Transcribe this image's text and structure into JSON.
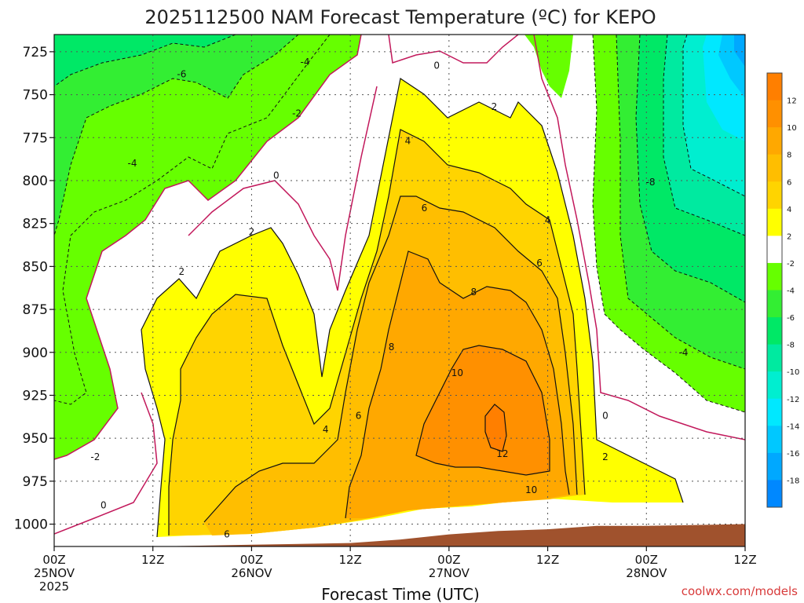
{
  "chart_data": {
    "type": "heatmap",
    "title": "2025112500 NAM Forecast Temperature (ºC) for KEPO",
    "xlabel": "Forecast Time (UTC)",
    "ylabel": "",
    "credit": "coolwx.com/models",
    "x_ticks": [
      {
        "hour": 0,
        "line1": "00Z",
        "line2": "25NOV",
        "line3": "2025"
      },
      {
        "hour": 12,
        "line1": "12Z",
        "line2": "",
        "line3": ""
      },
      {
        "hour": 24,
        "line1": "00Z",
        "line2": "26NOV",
        "line3": ""
      },
      {
        "hour": 36,
        "line1": "12Z",
        "line2": "",
        "line3": ""
      },
      {
        "hour": 48,
        "line1": "00Z",
        "line2": "27NOV",
        "line3": ""
      },
      {
        "hour": 60,
        "line1": "12Z",
        "line2": "",
        "line3": ""
      },
      {
        "hour": 72,
        "line1": "00Z",
        "line2": "28NOV",
        "line3": ""
      },
      {
        "hour": 84,
        "line1": "12Z",
        "line2": "",
        "line3": ""
      }
    ],
    "y_ticks": [
      725,
      750,
      775,
      800,
      825,
      850,
      875,
      900,
      925,
      950,
      975,
      1000
    ],
    "y_range": [
      1013,
      715
    ],
    "x_range": [
      0,
      84
    ],
    "colorbar": {
      "bins": [
        {
          "lo": 12,
          "hi": 14,
          "color": "#ff7f00"
        },
        {
          "lo": 10,
          "hi": 12,
          "color": "#ff9000"
        },
        {
          "lo": 8,
          "hi": 10,
          "color": "#ffa800"
        },
        {
          "lo": 6,
          "hi": 8,
          "color": "#ffbe00"
        },
        {
          "lo": 4,
          "hi": 6,
          "color": "#ffd400"
        },
        {
          "lo": 2,
          "hi": 4,
          "color": "#ffff00"
        },
        {
          "lo": -2,
          "hi": 2,
          "color": "#ffffff"
        },
        {
          "lo": -4,
          "hi": -2,
          "color": "#66ff00"
        },
        {
          "lo": -6,
          "hi": -4,
          "color": "#33ee33"
        },
        {
          "lo": -8,
          "hi": -6,
          "color": "#00e866"
        },
        {
          "lo": -10,
          "hi": -8,
          "color": "#00eaa0"
        },
        {
          "lo": -12,
          "hi": -10,
          "color": "#00eed0"
        },
        {
          "lo": -14,
          "hi": -12,
          "color": "#00e8ff"
        },
        {
          "lo": -16,
          "hi": -14,
          "color": "#00c8ff"
        },
        {
          "lo": -18,
          "hi": -16,
          "color": "#00a8ff"
        },
        {
          "lo": -20,
          "hi": -18,
          "color": "#0088ff"
        }
      ],
      "tick_labels": [
        "12",
        "10",
        "8",
        "6",
        "4",
        "2",
        "-2",
        "-4",
        "-6",
        "-8",
        "-10",
        "-12",
        "-14",
        "-16",
        "-18"
      ]
    },
    "terrain_color": "#a0522d",
    "surface_pressure": [
      {
        "hour": 0,
        "p": 1013
      },
      {
        "hour": 12,
        "p": 1013
      },
      {
        "hour": 24,
        "p": 1012
      },
      {
        "hour": 36,
        "p": 1011
      },
      {
        "hour": 42,
        "p": 1009
      },
      {
        "hour": 48,
        "p": 1006
      },
      {
        "hour": 54,
        "p": 1004
      },
      {
        "hour": 60,
        "p": 1003
      },
      {
        "hour": 66,
        "p": 1001
      },
      {
        "hour": 72,
        "p": 1001
      },
      {
        "hour": 84,
        "p": 1000
      }
    ],
    "contour_labels": [
      {
        "text": "-6",
        "hour": 15.5,
        "p": 738
      },
      {
        "text": "-4",
        "hour": 30.5,
        "p": 731
      },
      {
        "text": "-2",
        "hour": 29.5,
        "p": 761
      },
      {
        "text": "-4",
        "hour": 9.5,
        "p": 790
      },
      {
        "text": "0",
        "hour": 46.5,
        "p": 733
      },
      {
        "text": "0",
        "hour": 27,
        "p": 797
      },
      {
        "text": "2",
        "hour": 53.5,
        "p": 757
      },
      {
        "text": "4",
        "hour": 43,
        "p": 777
      },
      {
        "text": "6",
        "hour": 45,
        "p": 816
      },
      {
        "text": "4",
        "hour": 60,
        "p": 823
      },
      {
        "text": "2",
        "hour": 24,
        "p": 830
      },
      {
        "text": "6",
        "hour": 59,
        "p": 848
      },
      {
        "text": "8",
        "hour": 51,
        "p": 865
      },
      {
        "text": "2",
        "hour": 15.5,
        "p": 853
      },
      {
        "text": "8",
        "hour": 41,
        "p": 897
      },
      {
        "text": "10",
        "hour": 49,
        "p": 912
      },
      {
        "text": "4",
        "hour": 33,
        "p": 945
      },
      {
        "text": "6",
        "hour": 37,
        "p": 937
      },
      {
        "text": "12",
        "hour": 54.5,
        "p": 959
      },
      {
        "text": "10",
        "hour": 58,
        "p": 980
      },
      {
        "text": "0",
        "hour": 67,
        "p": 937
      },
      {
        "text": "2",
        "hour": 67,
        "p": 961
      },
      {
        "text": "-8",
        "hour": 72.5,
        "p": 801
      },
      {
        "text": "-4",
        "hour": 76.5,
        "p": 900
      },
      {
        "text": "-2",
        "hour": 5,
        "p": 961
      },
      {
        "text": "0",
        "hour": 6,
        "p": 989
      },
      {
        "text": "6",
        "hour": 21,
        "p": 1006
      }
    ]
  }
}
